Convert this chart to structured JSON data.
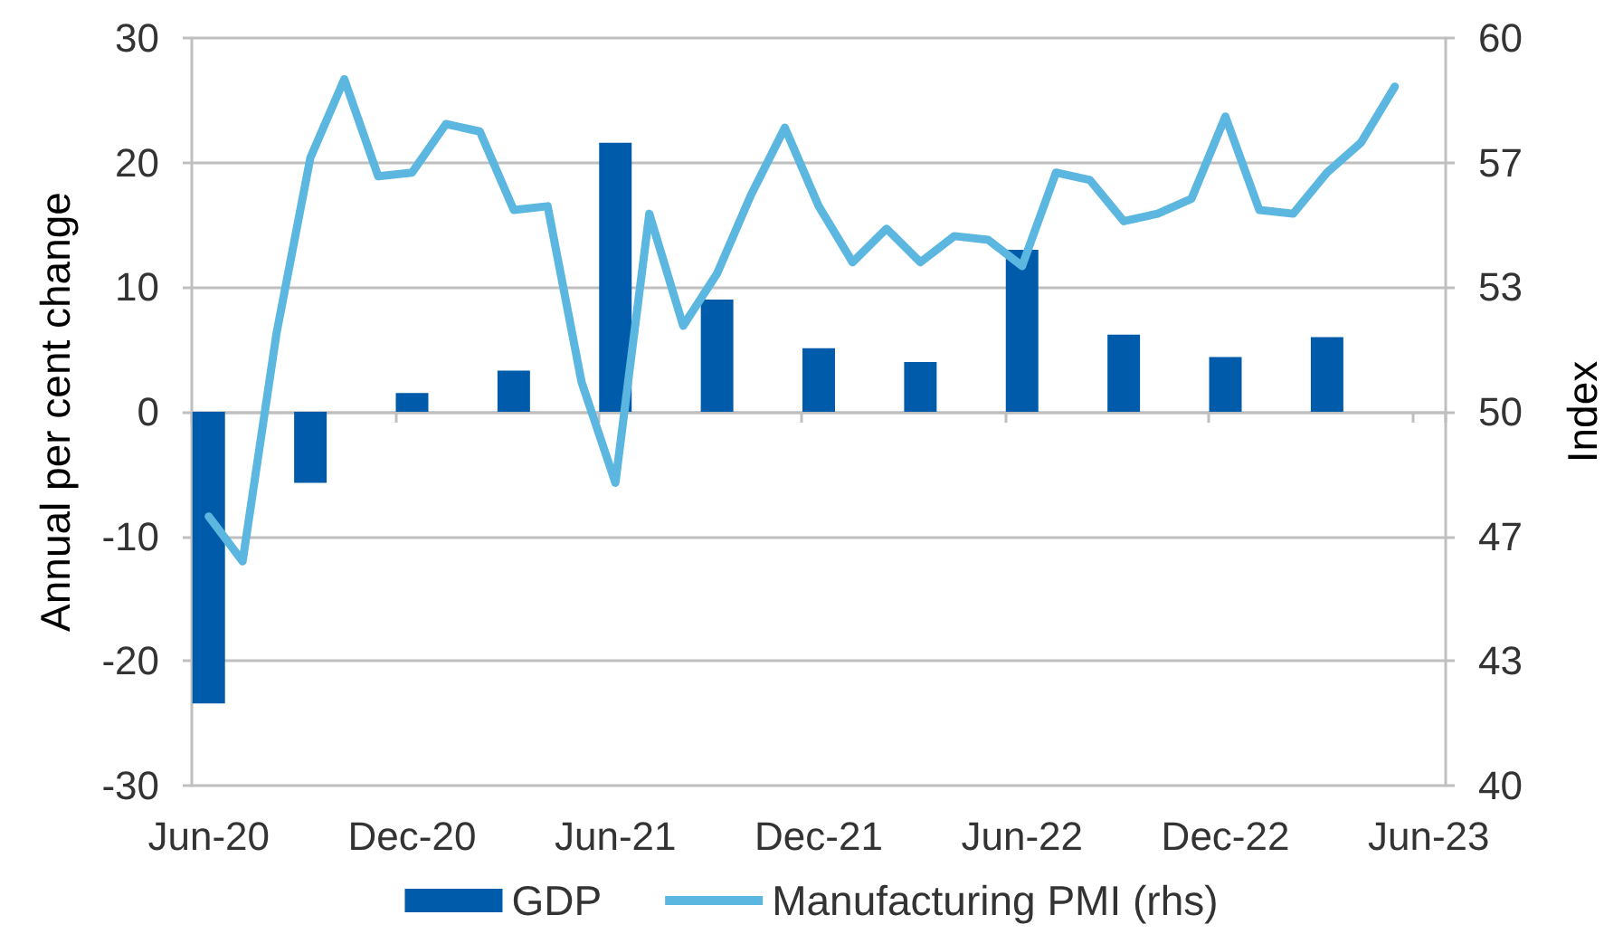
{
  "chart_data": {
    "type": "bar",
    "categories": [
      "Jun-20",
      null,
      null,
      null,
      null,
      null,
      "Dec-20",
      null,
      null,
      null,
      null,
      null,
      "Jun-21",
      null,
      null,
      null,
      null,
      null,
      "Dec-21",
      null,
      null,
      null,
      null,
      null,
      "Jun-22",
      null,
      null,
      null,
      null,
      null,
      "Dec-22",
      null,
      null,
      null,
      null,
      null,
      "Jun-23"
    ],
    "ylabel": "Annual per cent change",
    "y2label": "Index",
    "ylim": [
      -30,
      30
    ],
    "yticks": [
      -30,
      -20,
      -10,
      0,
      10,
      20,
      30
    ],
    "y2lim": [
      40,
      60
    ],
    "y2ticks": [
      40,
      {
        "value": 43.33,
        "label": "43"
      },
      {
        "value": 46.67,
        "label": "47"
      },
      50,
      {
        "value": 53.33,
        "label": "53"
      },
      {
        "value": 56.67,
        "label": "57"
      },
      60
    ],
    "grid": "y",
    "legend": "bottom",
    "marker": "none",
    "series": [
      {
        "name": "GDP",
        "color": "#005baa",
        "values": [
          -23.4,
          null,
          null,
          -5.7,
          null,
          null,
          1.5,
          null,
          null,
          3.3,
          null,
          null,
          21.6,
          null,
          null,
          9.0,
          null,
          null,
          5.1,
          null,
          null,
          4.0,
          null,
          null,
          13.0,
          null,
          null,
          6.2,
          null,
          null,
          4.4,
          null,
          null,
          6.0,
          null,
          null,
          null
        ]
      },
      {
        "name": "Manufacturing PMI (rhs)",
        "type": "line",
        "axis": "y2",
        "color": "#5bb6e0",
        "values": [
          47.2,
          46.0,
          52.1,
          56.8,
          58.9,
          56.3,
          56.4,
          57.7,
          57.5,
          55.4,
          55.5,
          50.8,
          48.1,
          55.3,
          52.3,
          53.7,
          55.8,
          57.6,
          55.5,
          54.0,
          54.9,
          54.0,
          54.7,
          54.6,
          53.9,
          56.4,
          56.2,
          55.1,
          55.3,
          55.7,
          57.9,
          55.4,
          55.3,
          56.4,
          57.2,
          58.7,
          null
        ]
      }
    ]
  }
}
